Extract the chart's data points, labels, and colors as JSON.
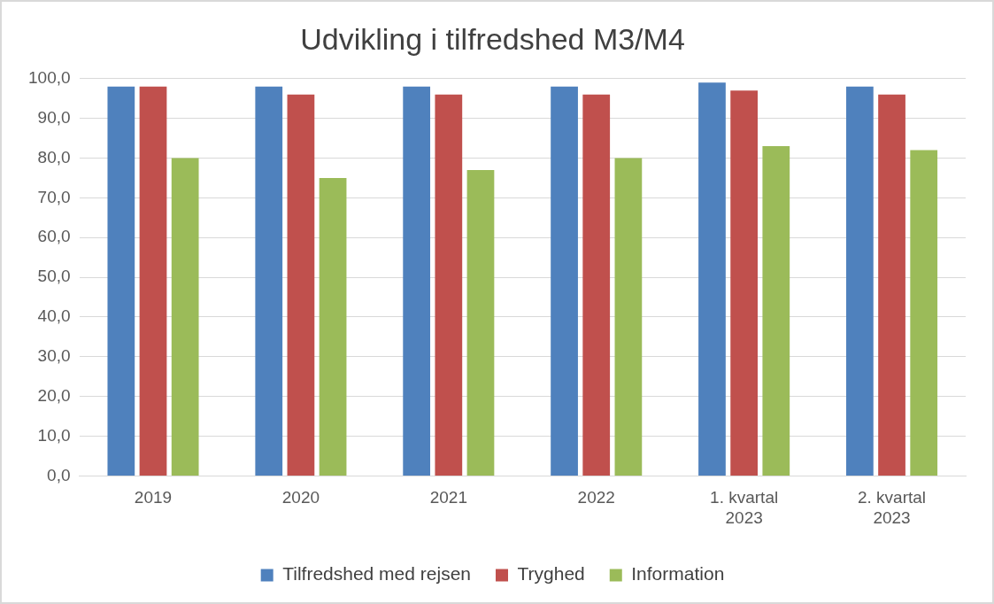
{
  "chart_data": {
    "type": "bar",
    "title": "Udvikling i tilfredshed M3/M4",
    "categories": [
      "2019",
      "2020",
      "2021",
      "2022",
      "1. kvartal 2023",
      "2. kvartal 2023"
    ],
    "series": [
      {
        "name": "Tilfredshed med rejsen",
        "color": "#4f81bd",
        "values": [
          98,
          98,
          98,
          98,
          99,
          98
        ]
      },
      {
        "name": "Tryghed",
        "color": "#c0504d",
        "values": [
          98,
          96,
          96,
          96,
          97,
          96
        ]
      },
      {
        "name": "Information",
        "color": "#9bbb59",
        "values": [
          80,
          75,
          77,
          80,
          83,
          82
        ]
      }
    ],
    "ylim": [
      0,
      100
    ],
    "yticks": [
      {
        "value": 0,
        "label": "0,0"
      },
      {
        "value": 10,
        "label": "10,0"
      },
      {
        "value": 20,
        "label": "20,0"
      },
      {
        "value": 30,
        "label": "30,0"
      },
      {
        "value": 40,
        "label": "40,0"
      },
      {
        "value": 50,
        "label": "50,0"
      },
      {
        "value": 60,
        "label": "60,0"
      },
      {
        "value": 70,
        "label": "70,0"
      },
      {
        "value": 80,
        "label": "80,0"
      },
      {
        "value": 90,
        "label": "90,0"
      },
      {
        "value": 100,
        "label": "100,0"
      }
    ],
    "grid": "y",
    "legend": "bottom"
  }
}
